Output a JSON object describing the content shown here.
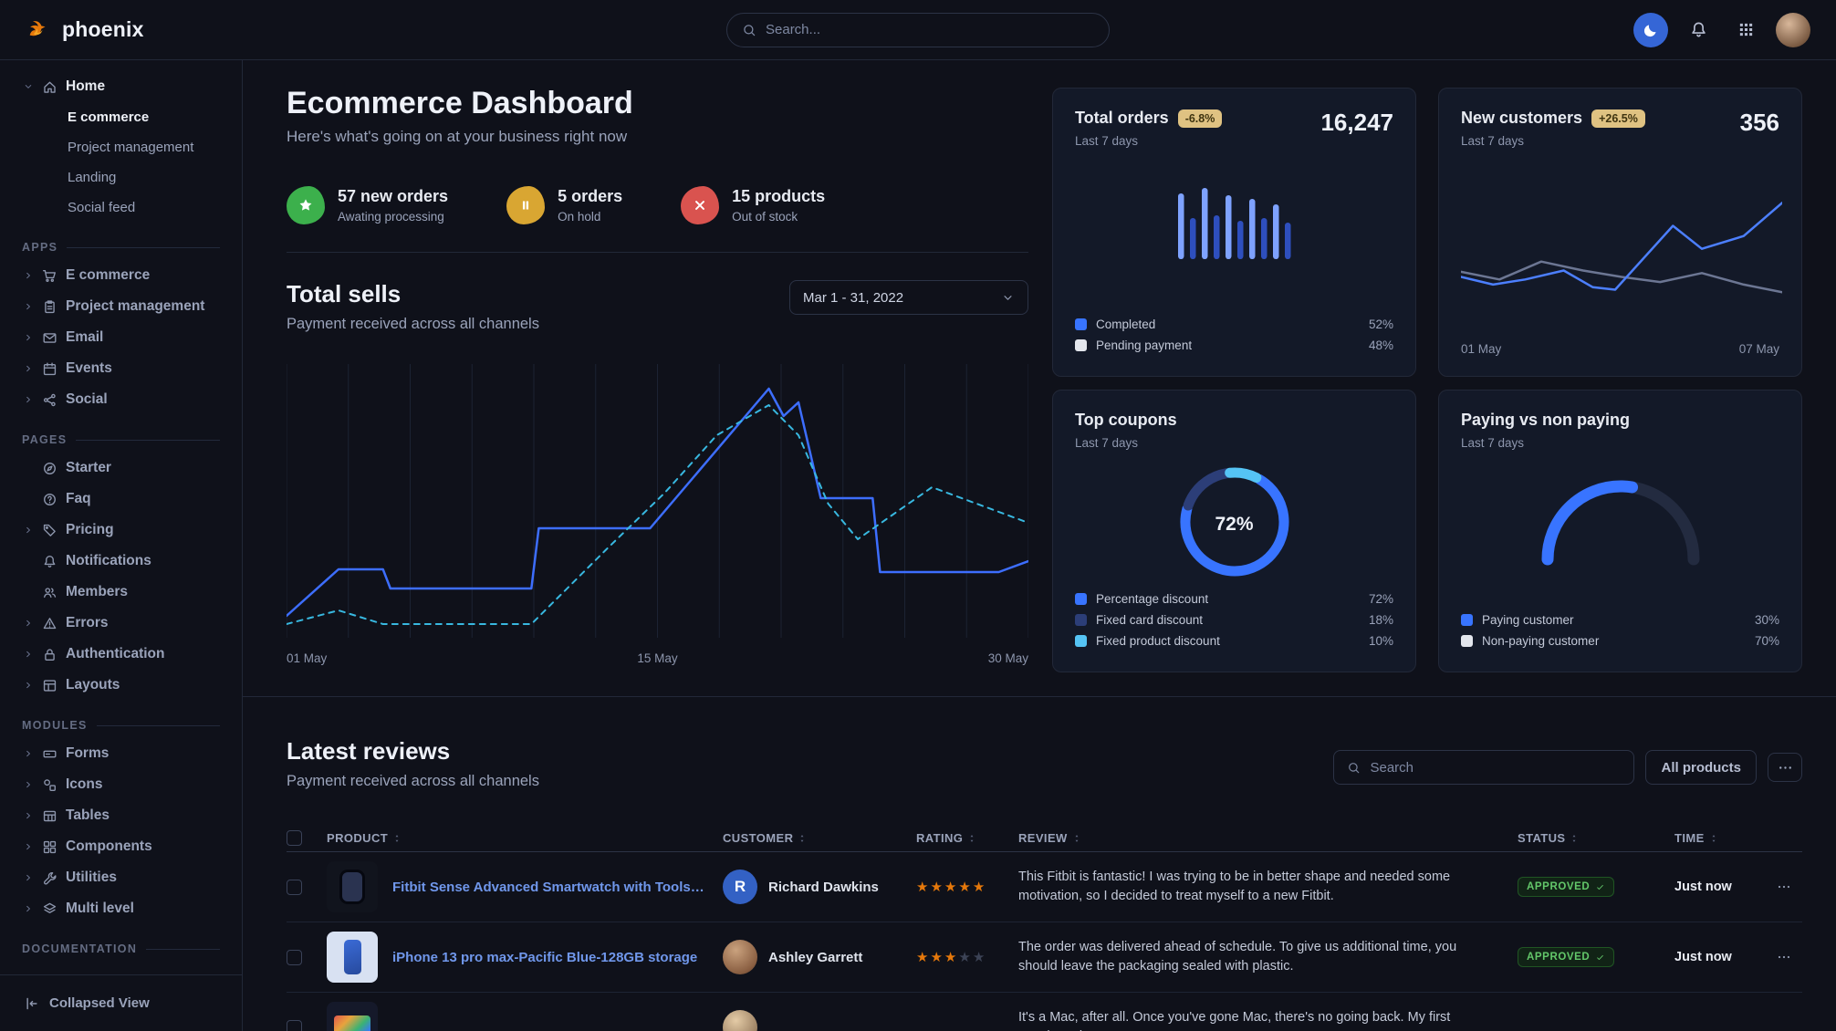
{
  "navbar": {
    "brand": "phoenix",
    "search_placeholder": "Search..."
  },
  "sidebar": {
    "home": {
      "label": "Home",
      "icon": "house",
      "children": [
        {
          "label": "E commerce",
          "active": true
        },
        {
          "label": "Project management"
        },
        {
          "label": "Landing"
        },
        {
          "label": "Social feed"
        }
      ]
    },
    "sections": [
      {
        "title": "APPS",
        "items": [
          {
            "label": "E commerce",
            "icon": "cart",
            "expandable": true
          },
          {
            "label": "Project management",
            "icon": "clipboard",
            "expandable": true
          },
          {
            "label": "Email",
            "icon": "envelope",
            "expandable": true
          },
          {
            "label": "Events",
            "icon": "calendar",
            "expandable": true
          },
          {
            "label": "Social",
            "icon": "share",
            "expandable": true
          }
        ]
      },
      {
        "title": "PAGES",
        "items": [
          {
            "label": "Starter",
            "icon": "compass"
          },
          {
            "label": "Faq",
            "icon": "question"
          },
          {
            "label": "Pricing",
            "icon": "tag",
            "expandable": true
          },
          {
            "label": "Notifications",
            "icon": "bell"
          },
          {
            "label": "Members",
            "icon": "users"
          },
          {
            "label": "Errors",
            "icon": "alert",
            "expandable": true
          },
          {
            "label": "Authentication",
            "icon": "lock",
            "expandable": true
          },
          {
            "label": "Layouts",
            "icon": "layout",
            "expandable": true
          }
        ]
      },
      {
        "title": "MODULES",
        "items": [
          {
            "label": "Forms",
            "icon": "form",
            "expandable": true
          },
          {
            "label": "Icons",
            "icon": "shapes",
            "expandable": true
          },
          {
            "label": "Tables",
            "icon": "table",
            "expandable": true
          },
          {
            "label": "Components",
            "icon": "grid4",
            "expandable": true
          },
          {
            "label": "Utilities",
            "icon": "wrench",
            "expandable": true
          },
          {
            "label": "Multi level",
            "icon": "layers",
            "expandable": true
          }
        ]
      },
      {
        "title": "DOCUMENTATION",
        "items": []
      }
    ],
    "collapsed_label": "Collapsed View"
  },
  "page": {
    "title": "Ecommerce Dashboard",
    "subtitle": "Here's what's going on at your business right now"
  },
  "stats": [
    {
      "icon": "star",
      "color": "#3cb04c",
      "value": "57 new orders",
      "caption": "Awating processing"
    },
    {
      "icon": "pause",
      "color": "#d9a632",
      "value": "5 orders",
      "caption": "On hold"
    },
    {
      "icon": "x",
      "color": "#d9534f",
      "value": "15 products",
      "caption": "Out of stock"
    }
  ],
  "total_sells": {
    "title": "Total sells",
    "subtitle": "Payment received across all channels",
    "date_range": "Mar 1 - 31, 2022"
  },
  "cards": {
    "total_orders": {
      "title": "Total orders",
      "badge": "-6.8%",
      "period": "Last 7 days",
      "value": "16,247",
      "legend": [
        {
          "label": "Completed",
          "value": "52%",
          "color": "#3874ff"
        },
        {
          "label": "Pending payment",
          "value": "48%",
          "color": "#e3e6ed"
        }
      ]
    },
    "new_customers": {
      "title": "New customers",
      "badge": "+26.5%",
      "period": "Last 7 days",
      "value": "356"
    },
    "top_coupons": {
      "title": "Top coupons",
      "period": "Last 7 days",
      "legend": [
        {
          "label": "Percentage discount",
          "value": "72%",
          "color": "#3874ff"
        },
        {
          "label": "Fixed card discount",
          "value": "18%",
          "color": "#2c3e78"
        },
        {
          "label": "Fixed product discount",
          "value": "10%",
          "color": "#55c4f5"
        }
      ]
    },
    "paying_vs_non_paying": {
      "title": "Paying vs non paying",
      "period": "Last 7 days",
      "legend": [
        {
          "label": "Paying customer",
          "value": "30%",
          "color": "#3874ff"
        },
        {
          "label": "Non-paying customer",
          "value": "70%",
          "color": "#e3e6ed"
        }
      ]
    }
  },
  "chart_data": [
    {
      "id": "total_sells",
      "type": "line",
      "title": "Total sells",
      "x_ticks": [
        "01 May",
        "15 May",
        "30 May"
      ],
      "grid": "vertical",
      "y_unit": "percent_of_plot_height",
      "series": [
        {
          "name": "current period",
          "style": "solid",
          "color": "#3d6eff",
          "points": [
            [
              0,
              8
            ],
            [
              7,
              25
            ],
            [
              13,
              25
            ],
            [
              14,
              18
            ],
            [
              33,
              18
            ],
            [
              34,
              40
            ],
            [
              49,
              40
            ],
            [
              65,
              91
            ],
            [
              67,
              81
            ],
            [
              69,
              86
            ],
            [
              72,
              51
            ],
            [
              79,
              51
            ],
            [
              80,
              24
            ],
            [
              96,
              24
            ],
            [
              100,
              28
            ]
          ]
        },
        {
          "name": "previous period",
          "style": "dashed",
          "color": "#38b8e0",
          "points": [
            [
              0,
              5
            ],
            [
              7,
              10
            ],
            [
              13,
              5
            ],
            [
              33,
              5
            ],
            [
              43,
              32
            ],
            [
              51,
              53
            ],
            [
              58,
              74
            ],
            [
              65,
              85
            ],
            [
              69,
              74
            ],
            [
              73,
              49
            ],
            [
              77,
              36
            ],
            [
              87,
              55
            ],
            [
              100,
              42
            ]
          ]
        }
      ]
    },
    {
      "id": "total_orders",
      "type": "bar",
      "title": "Total orders",
      "values": [
        72,
        45,
        78,
        48,
        70,
        42,
        66,
        45,
        60,
        40
      ],
      "colors": [
        "#7ea2ff",
        "#2e4fbe"
      ]
    },
    {
      "id": "new_customers",
      "type": "line",
      "title": "New customers",
      "x_ticks": [
        "01 May",
        "07 May"
      ],
      "series": [
        {
          "name": "secondary",
          "style": "solid",
          "color": "#6c7693",
          "points": [
            [
              0,
              34
            ],
            [
              12,
              28
            ],
            [
              25,
              42
            ],
            [
              38,
              35
            ],
            [
              50,
              30
            ],
            [
              62,
              26
            ],
            [
              75,
              33
            ],
            [
              88,
              24
            ],
            [
              100,
              18
            ]
          ]
        },
        {
          "name": "primary",
          "style": "solid",
          "color": "#4c7fff",
          "points": [
            [
              0,
              30
            ],
            [
              10,
              24
            ],
            [
              20,
              28
            ],
            [
              32,
              35
            ],
            [
              41,
              22
            ],
            [
              48,
              20
            ],
            [
              66,
              70
            ],
            [
              75,
              52
            ],
            [
              88,
              62
            ],
            [
              100,
              88
            ]
          ]
        }
      ]
    },
    {
      "id": "top_coupons",
      "type": "donut",
      "title": "Top coupons",
      "center_label": "72%",
      "slices": [
        {
          "label": "Percentage discount",
          "value": 72,
          "color": "#3874ff"
        },
        {
          "label": "Fixed card discount",
          "value": 18,
          "color": "#2c3e78"
        },
        {
          "label": "Fixed product discount",
          "value": 10,
          "color": "#55c4f5"
        }
      ]
    },
    {
      "id": "paying_gauge",
      "type": "gauge",
      "title": "Paying vs non paying",
      "arc_sweep_pct": 55,
      "color": "#3874ff",
      "track": "#232b40",
      "slices": [
        {
          "label": "Paying customer",
          "value": 30
        },
        {
          "label": "Non-paying customer",
          "value": 70
        }
      ]
    }
  ],
  "reviews": {
    "title": "Latest reviews",
    "subtitle": "Payment received across all channels",
    "search_placeholder": "Search",
    "filter_button": "All products",
    "columns": [
      "PRODUCT",
      "CUSTOMER",
      "RATING",
      "REVIEW",
      "STATUS",
      "TIME"
    ],
    "rows": [
      {
        "product": "Fitbit Sense Advanced Smartwatch with Tools fo...",
        "thumb": "smartwatch",
        "customer": "Richard Dawkins",
        "avatar": {
          "type": "letter",
          "text": "R",
          "color": "#3361c4"
        },
        "rating": 5,
        "review": "This Fitbit is fantastic! I was trying to be in better shape and needed some motivation, so I decided to treat myself to a new Fitbit.",
        "status": "APPROVED",
        "time": "Just now"
      },
      {
        "product": "iPhone 13 pro max-Pacific Blue-128GB storage",
        "thumb": "phone",
        "customer": "Ashley Garrett",
        "avatar": {
          "type": "photo",
          "tone": "warm"
        },
        "rating": 3,
        "review": "The order was delivered ahead of schedule. To give us additional time, you should leave the packaging sealed with plastic.",
        "status": "APPROVED",
        "time": "Just now"
      },
      {
        "product": "",
        "thumb": "laptop",
        "customer": "",
        "avatar": {
          "type": "photo",
          "tone": "light"
        },
        "rating": 0,
        "review": "It's a Mac, after all. Once you've gone Mac, there's no going back. My first Mac lasted",
        "status": "",
        "time": ""
      }
    ]
  }
}
